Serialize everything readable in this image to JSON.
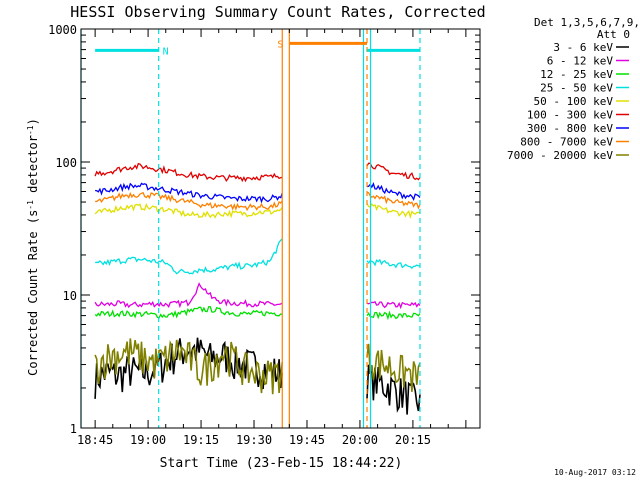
{
  "chart_data": {
    "type": "line",
    "title": "HESSI Observing Summary Count Rates, Corrected",
    "xlabel": "Start Time (23-Feb-15 18:44:22)",
    "ylabel": "Corrected Count Rate (s⁻¹ detector⁻¹)",
    "scale": "log",
    "xlim": [
      "18:41",
      "20:34"
    ],
    "ylim": [
      1,
      1000
    ],
    "x_ticks": [
      "18:45",
      "19:00",
      "19:15",
      "19:30",
      "19:45",
      "20:00",
      "20:15"
    ],
    "y_ticks": [
      "1",
      "10",
      "100",
      "1000"
    ],
    "legend": {
      "placement": "top-right-outside",
      "header": [
        "Det 1,3,5,6,7,9,",
        "Att 0"
      ]
    },
    "segments": [
      [
        "18:45",
        "19:38"
      ],
      [
        "20:02",
        "20:17"
      ]
    ],
    "series": [
      {
        "name": "3 - 6 keV",
        "color": "#000000",
        "values": [
          [
            2.3,
            2.5,
            2.4,
            2.6,
            2.5,
            2.6,
            3.0,
            3.5,
            3.8,
            3.6,
            3.2,
            3.4,
            3.0,
            2.9,
            2.8,
            2.6,
            2.5
          ],
          [
            2.3,
            1.9,
            1.5
          ]
        ]
      },
      {
        "name": "6 - 12 keV",
        "color": "#e000e0",
        "values": [
          [
            8.5,
            8.5,
            8.6,
            8.4,
            8.5,
            8.6,
            8.5,
            8.6,
            8.8,
            12.0,
            9.5,
            8.8,
            8.7,
            8.6,
            8.6,
            8.5,
            8.5
          ],
          [
            8.5,
            8.4,
            8.4
          ]
        ]
      },
      {
        "name": "12 - 25 keV",
        "color": "#00e000",
        "values": [
          [
            7.2,
            7.2,
            7.3,
            7.2,
            7.2,
            7.1,
            7.0,
            7.2,
            7.5,
            7.8,
            7.8,
            7.5,
            7.3,
            7.2,
            7.3,
            7.3,
            7.3
          ],
          [
            7.2,
            7.0,
            7.0
          ]
        ]
      },
      {
        "name": "25 - 50 keV",
        "color": "#00e0e0",
        "values": [
          [
            17.0,
            17.5,
            18.0,
            18.5,
            18.5,
            18.0,
            17.5,
            15.0,
            15.0,
            15.5,
            15.5,
            16.0,
            16.5,
            16.5,
            17.0,
            18.0,
            26.0
          ],
          [
            18.0,
            17.0,
            16.5
          ]
        ]
      },
      {
        "name": "50 - 100 keV",
        "color": "#e0e000",
        "values": [
          [
            41,
            43,
            45,
            46,
            46,
            45,
            44,
            42,
            40,
            40,
            40,
            41,
            41,
            41,
            42,
            42,
            44
          ],
          [
            47,
            42,
            40
          ]
        ]
      },
      {
        "name": "100 - 300 keV",
        "color": "#e00000",
        "values": [
          [
            82,
            84,
            88,
            92,
            93,
            90,
            87,
            83,
            80,
            78,
            77,
            76,
            76,
            76,
            77,
            77,
            80
          ],
          [
            98,
            82,
            77
          ]
        ]
      },
      {
        "name": "300 - 800 keV",
        "color": "#0000ff",
        "values": [
          [
            60,
            61,
            64,
            66,
            66,
            64,
            62,
            60,
            58,
            56,
            55,
            54,
            53,
            53,
            53,
            53,
            56
          ],
          [
            68,
            58,
            54
          ]
        ]
      },
      {
        "name": "800 - 7000 keV",
        "color": "#ff8000",
        "values": [
          [
            50,
            52,
            55,
            57,
            57,
            56,
            54,
            52,
            50,
            48,
            47,
            47,
            46,
            46,
            46,
            46,
            49
          ],
          [
            57,
            50,
            47
          ]
        ]
      },
      {
        "name": "7000 - 20000 keV",
        "color": "#808000",
        "values": [
          [
            2.8,
            3.3,
            3.5,
            3.6,
            3.3,
            3.0,
            3.2,
            3.7,
            3.3,
            2.6,
            3.0,
            3.6,
            3.1,
            2.6,
            2.5,
            2.4,
            2.6
          ],
          [
            3.3,
            2.7,
            2.3
          ]
        ]
      }
    ],
    "annotations": [
      {
        "label": "N",
        "color": "#00e0e0",
        "level": 690,
        "from": "18:45",
        "to": "19:03"
      },
      {
        "label": "S",
        "color": "#ff8000",
        "level": 780,
        "from": "19:40",
        "to": "20:02"
      },
      {
        "label": "",
        "color": "#00e0e0",
        "level": 690,
        "from": "20:02",
        "to": "20:17"
      }
    ]
  },
  "footer": {
    "timestamp": "10-Aug-2017 03:12"
  },
  "colors": {
    "background": "#ffffff",
    "axes": "#000000"
  }
}
